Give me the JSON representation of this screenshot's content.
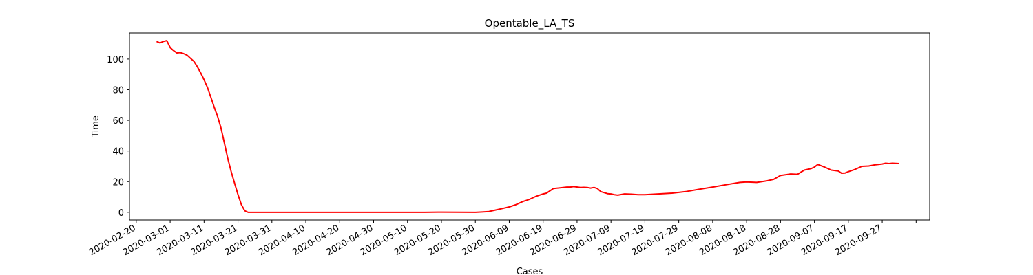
{
  "chart_data": {
    "type": "line",
    "title": "Opentable_LA_TS",
    "xlabel": "Cases",
    "ylabel": "Time",
    "x_axis_type": "date",
    "xlim": [
      "2020-02-18",
      "2020-10-11"
    ],
    "ylim": [
      -5,
      117
    ],
    "grid": false,
    "x_ticks": [
      "2020-02-20",
      "2020-03-01",
      "2020-03-11",
      "2020-03-21",
      "2020-03-31",
      "2020-04-10",
      "2020-04-20",
      "2020-04-30",
      "2020-05-10",
      "2020-05-20",
      "2020-05-30",
      "2020-06-09",
      "2020-06-19",
      "2020-06-29",
      "2020-07-09",
      "2020-07-19",
      "2020-07-29",
      "2020-08-08",
      "2020-08-18",
      "2020-08-28",
      "2020-09-07",
      "2020-09-17",
      "2020-09-27"
    ],
    "y_ticks": [
      0,
      20,
      40,
      60,
      80,
      100
    ],
    "series": [
      {
        "color": "#ff0000",
        "x": [
          "2020-02-26",
          "2020-02-27",
          "2020-02-28",
          "2020-02-29",
          "2020-03-01",
          "2020-03-02",
          "2020-03-03",
          "2020-03-04",
          "2020-03-05",
          "2020-03-06",
          "2020-03-07",
          "2020-03-08",
          "2020-03-09",
          "2020-03-10",
          "2020-03-11",
          "2020-03-12",
          "2020-03-13",
          "2020-03-14",
          "2020-03-15",
          "2020-03-16",
          "2020-03-17",
          "2020-03-18",
          "2020-03-19",
          "2020-03-20",
          "2020-03-21",
          "2020-03-22",
          "2020-03-23",
          "2020-03-24",
          "2020-04-01",
          "2020-04-15",
          "2020-05-01",
          "2020-05-15",
          "2020-05-20",
          "2020-05-30",
          "2020-06-01",
          "2020-06-03",
          "2020-06-05",
          "2020-06-07",
          "2020-06-09",
          "2020-06-11",
          "2020-06-13",
          "2020-06-15",
          "2020-06-17",
          "2020-06-19",
          "2020-06-20",
          "2020-06-22",
          "2020-06-24",
          "2020-06-26",
          "2020-06-27",
          "2020-06-28",
          "2020-06-30",
          "2020-07-01",
          "2020-07-02",
          "2020-07-03",
          "2020-07-04",
          "2020-07-05",
          "2020-07-06",
          "2020-07-08",
          "2020-07-09",
          "2020-07-10",
          "2020-07-11",
          "2020-07-13",
          "2020-07-15",
          "2020-07-17",
          "2020-07-19",
          "2020-07-23",
          "2020-07-27",
          "2020-07-31",
          "2020-08-04",
          "2020-08-08",
          "2020-08-12",
          "2020-08-16",
          "2020-08-18",
          "2020-08-21",
          "2020-08-24",
          "2020-08-26",
          "2020-08-28",
          "2020-08-31",
          "2020-09-02",
          "2020-09-04",
          "2020-09-06",
          "2020-09-07",
          "2020-09-08",
          "2020-09-10",
          "2020-09-12",
          "2020-09-14",
          "2020-09-15",
          "2020-09-16",
          "2020-09-17",
          "2020-09-19",
          "2020-09-21",
          "2020-09-23",
          "2020-09-25",
          "2020-09-27",
          "2020-09-28",
          "2020-09-29",
          "2020-09-30",
          "2020-10-02"
        ],
        "y": [
          111.5,
          110.5,
          111.5,
          112,
          107.5,
          105.5,
          104,
          104.2,
          103.5,
          102.5,
          100.5,
          98.5,
          95,
          91,
          86.5,
          81.5,
          75,
          68.5,
          62.5,
          55,
          45,
          35,
          26.5,
          19,
          11.5,
          5,
          1,
          0,
          0,
          0,
          0,
          0,
          0.1,
          0,
          0.2,
          0.5,
          1.5,
          2.5,
          3.5,
          5,
          7,
          8.5,
          10.5,
          12,
          12.5,
          15.5,
          16,
          16.5,
          16.5,
          16.8,
          16.2,
          16.3,
          16.2,
          15.8,
          16.2,
          15.5,
          13.5,
          12.2,
          12,
          11.5,
          11.2,
          12,
          11.8,
          11.5,
          11.5,
          12,
          12.5,
          13.5,
          15,
          16.5,
          18,
          19.5,
          19.8,
          19.5,
          20.5,
          21.5,
          24,
          25,
          24.8,
          27.5,
          28.5,
          29.5,
          31.2,
          29.5,
          27.5,
          27,
          25.5,
          25.6,
          26.5,
          28,
          30,
          30.2,
          31,
          31.5,
          32,
          31.8,
          32,
          31.8
        ]
      }
    ]
  }
}
